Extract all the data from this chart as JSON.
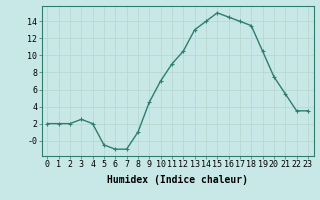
{
  "x": [
    0,
    1,
    2,
    3,
    4,
    5,
    6,
    7,
    8,
    9,
    10,
    11,
    12,
    13,
    14,
    15,
    16,
    17,
    18,
    19,
    20,
    21,
    22,
    23
  ],
  "y": [
    2,
    2,
    2,
    2.5,
    2,
    -0.5,
    -1,
    -1,
    1,
    4.5,
    7,
    9,
    10.5,
    13,
    14,
    15,
    14.5,
    14,
    13.5,
    10.5,
    7.5,
    5.5,
    3.5,
    3.5
  ],
  "line_color": "#2e7d6e",
  "marker_color": "#2e7d6e",
  "background_color": "#c8e8e8",
  "grid_color_major": "#b8d8d0",
  "grid_color_minor": "#d4e8e4",
  "xlabel": "Humidex (Indice chaleur)",
  "xlim": [
    -0.5,
    23.5
  ],
  "ylim": [
    -1.8,
    15.8
  ],
  "yticks": [
    0,
    2,
    4,
    6,
    8,
    10,
    12,
    14
  ],
  "ytick_labels": [
    "-0",
    "2",
    "4",
    "6",
    "8",
    "10",
    "12",
    "14"
  ],
  "xtick_labels": [
    "0",
    "1",
    "2",
    "3",
    "4",
    "5",
    "6",
    "7",
    "8",
    "9",
    "10",
    "11",
    "12",
    "13",
    "14",
    "15",
    "16",
    "17",
    "18",
    "19",
    "20",
    "21",
    "22",
    "23"
  ],
  "axis_fontsize": 6,
  "label_fontsize": 7,
  "linewidth": 1.0,
  "markersize": 2.5
}
